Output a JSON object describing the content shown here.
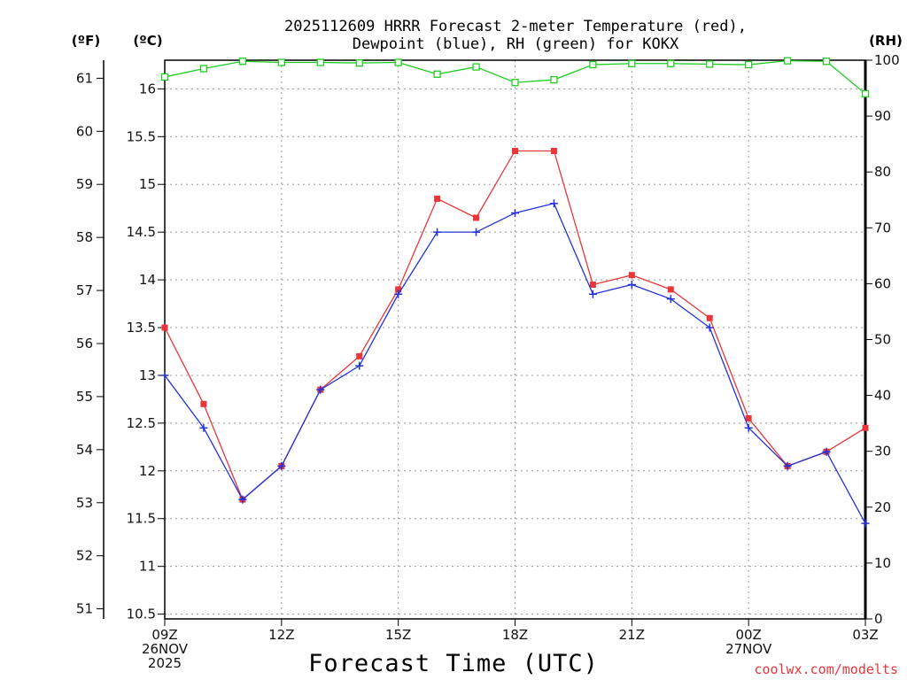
{
  "title": {
    "line1": "2025112609 HRRR Forecast 2-meter Temperature (red),",
    "line2": "Dewpoint (blue), RH (green) for KOKX"
  },
  "units": {
    "fahrenheit": "(ºF)",
    "celsius": "(ºC)",
    "rh": "(RH)"
  },
  "xlabel": "Forecast Time (UTC)",
  "credit": "coolwx.com/modelts",
  "colors": {
    "temperature": "#e8363a",
    "dewpoint": "#2433d8",
    "rh": "#22cc22",
    "grid": "#999999"
  },
  "chart_data": {
    "type": "line",
    "x": [
      0,
      1,
      2,
      3,
      4,
      5,
      6,
      7,
      8,
      9,
      10,
      11,
      12,
      13,
      14,
      15,
      16,
      17,
      18
    ],
    "xlim": [
      0,
      18
    ],
    "x_ticks": [
      {
        "x": 0,
        "lines": [
          "09Z",
          "26NOV",
          "2025"
        ]
      },
      {
        "x": 3,
        "lines": [
          "12Z"
        ]
      },
      {
        "x": 6,
        "lines": [
          "15Z"
        ]
      },
      {
        "x": 9,
        "lines": [
          "18Z"
        ]
      },
      {
        "x": 12,
        "lines": [
          "21Z"
        ]
      },
      {
        "x": 15,
        "lines": [
          "00Z",
          "27NOV"
        ]
      },
      {
        "x": 18,
        "lines": [
          "03Z"
        ]
      }
    ],
    "left_axis_celsius": {
      "ylim": [
        10.45,
        16.3
      ],
      "ticks": [
        "10.5",
        "11",
        "11.5",
        "12",
        "12.5",
        "13",
        "13.5",
        "14",
        "14.5",
        "15",
        "15.5",
        "16"
      ]
    },
    "left_axis_fahrenheit": {
      "ticks": [
        "51",
        "52",
        "53",
        "54",
        "55",
        "56",
        "57",
        "58",
        "59",
        "60",
        "61"
      ]
    },
    "right_axis_rh": {
      "ylim": [
        0,
        100
      ],
      "ticks": [
        "0",
        "10",
        "20",
        "30",
        "40",
        "50",
        "60",
        "70",
        "80",
        "90",
        "100"
      ]
    },
    "series": [
      {
        "name": "Temperature",
        "axis": "celsius",
        "marker": "filled-square",
        "values": [
          13.5,
          12.7,
          11.7,
          12.05,
          12.85,
          13.2,
          13.9,
          14.85,
          14.65,
          15.35,
          15.35,
          13.95,
          14.05,
          13.9,
          13.6,
          12.55,
          12.05,
          12.2,
          12.45
        ]
      },
      {
        "name": "Dewpoint",
        "axis": "celsius",
        "marker": "plus",
        "values": [
          13.0,
          12.45,
          11.7,
          12.05,
          12.85,
          13.1,
          13.85,
          14.5,
          14.5,
          14.7,
          14.8,
          13.85,
          13.95,
          13.8,
          13.5,
          12.45,
          12.05,
          12.2,
          11.45
        ]
      },
      {
        "name": "RH",
        "axis": "rh",
        "marker": "open-square",
        "values": [
          97,
          98.5,
          99.8,
          99.6,
          99.6,
          99.5,
          99.6,
          97.5,
          98.8,
          96,
          96.5,
          99.2,
          99.4,
          99.4,
          99.3,
          99.2,
          99.9,
          99.8,
          94
        ]
      }
    ]
  }
}
